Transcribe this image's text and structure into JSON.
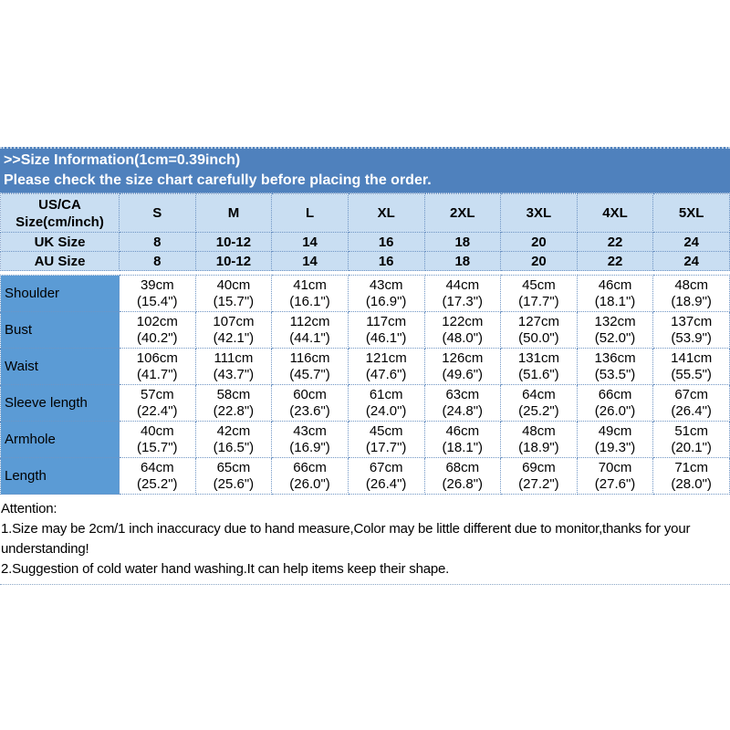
{
  "page": {
    "banner": {
      "line1": ">>Size Information(1cm=0.39inch)",
      "line2": "Please check the size chart carefully before placing the order."
    },
    "attention": {
      "title": "Attention:",
      "note1": "1.Size may be 2cm/1 inch inaccuracy due to hand measure,Color may be little different due to monitor,thanks for your understanding!",
      "note2": "2.Suggestion of cold water hand washing.It can help items keep their shape."
    },
    "colors": {
      "banner_bg": "#4f81bd",
      "banner_text": "#ffffff",
      "header_row_bg": "#c9def2",
      "label_column_bg": "#5b9bd5",
      "cell_border": "#6f95c4",
      "body_text": "#000000"
    }
  },
  "chart_data": {
    "type": "table",
    "title": "Size Information (1cm=0.39inch)",
    "columns": [
      "US/CA Size(cm/inch)",
      "S",
      "M",
      "L",
      "XL",
      "2XL",
      "3XL",
      "4XL",
      "5XL"
    ],
    "size_rows": [
      {
        "label": "UK Size",
        "values": [
          "8",
          "10-12",
          "14",
          "16",
          "18",
          "20",
          "22",
          "24"
        ]
      },
      {
        "label": "AU Size",
        "values": [
          "8",
          "10-12",
          "14",
          "16",
          "18",
          "20",
          "22",
          "24"
        ]
      }
    ],
    "measurement_rows": [
      {
        "label": "Shoulder",
        "cm": [
          "39cm",
          "40cm",
          "41cm",
          "43cm",
          "44cm",
          "45cm",
          "46cm",
          "48cm"
        ],
        "inch": [
          "(15.4\")",
          "(15.7\")",
          "(16.1\")",
          "(16.9\")",
          "(17.3\")",
          "(17.7\")",
          "(18.1\")",
          "(18.9\")"
        ]
      },
      {
        "label": "Bust",
        "cm": [
          "102cm",
          "107cm",
          "112cm",
          "117cm",
          "122cm",
          "127cm",
          "132cm",
          "137cm"
        ],
        "inch": [
          "(40.2\")",
          "(42.1\")",
          "(44.1\")",
          "(46.1\")",
          "(48.0\")",
          "(50.0\")",
          "(52.0\")",
          "(53.9\")"
        ]
      },
      {
        "label": "Waist",
        "cm": [
          "106cm",
          "111cm",
          "116cm",
          "121cm",
          "126cm",
          "131cm",
          "136cm",
          "141cm"
        ],
        "inch": [
          "(41.7\")",
          "(43.7\")",
          "(45.7\")",
          "(47.6\")",
          "(49.6\")",
          "(51.6\")",
          "(53.5\")",
          "(55.5\")"
        ]
      },
      {
        "label": "Sleeve length",
        "cm": [
          "57cm",
          "58cm",
          "60cm",
          "61cm",
          "63cm",
          "64cm",
          "66cm",
          "67cm"
        ],
        "inch": [
          "(22.4\")",
          "(22.8\")",
          "(23.6\")",
          "(24.0\")",
          "(24.8\")",
          "(25.2\")",
          "(26.0\")",
          "(26.4\")"
        ]
      },
      {
        "label": "Armhole",
        "cm": [
          "40cm",
          "42cm",
          "43cm",
          "45cm",
          "46cm",
          "48cm",
          "49cm",
          "51cm"
        ],
        "inch": [
          "(15.7\")",
          "(16.5\")",
          "(16.9\")",
          "(17.7\")",
          "(18.1\")",
          "(18.9\")",
          "(19.3\")",
          "(20.1\")"
        ]
      },
      {
        "label": "Length",
        "cm": [
          "64cm",
          "65cm",
          "66cm",
          "67cm",
          "68cm",
          "69cm",
          "70cm",
          "71cm"
        ],
        "inch": [
          "(25.2\")",
          "(25.6\")",
          "(26.0\")",
          "(26.4\")",
          "(26.8\")",
          "(27.2\")",
          "(27.6\")",
          "(28.0\")"
        ]
      }
    ]
  }
}
